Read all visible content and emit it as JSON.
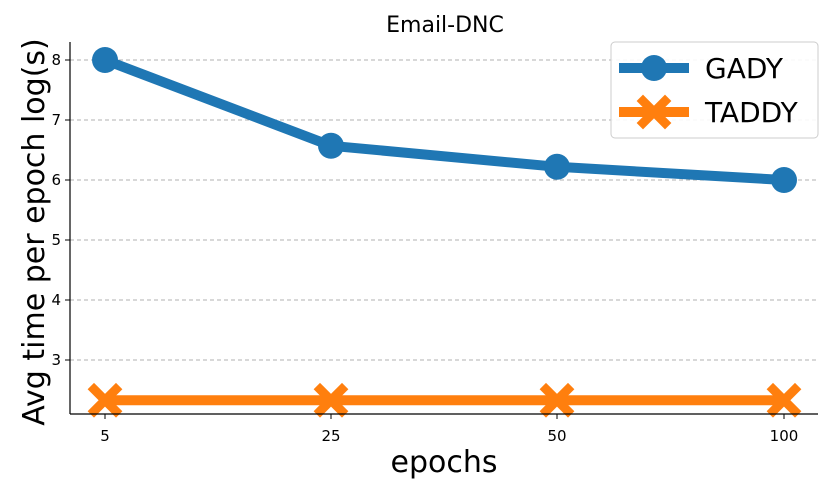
{
  "chart_data": {
    "type": "line",
    "title": "Email-DNC",
    "xlabel": "epochs",
    "ylabel": "Avg time per epoch log(s)",
    "categories": [
      "5",
      "25",
      "50",
      "100"
    ],
    "ylim": [
      2.1,
      8.3
    ],
    "yticks": [
      3,
      4,
      5,
      6,
      7,
      8
    ],
    "grid": "horizontal dashed",
    "legend_position": "top-right",
    "series": [
      {
        "name": "GADY",
        "values": [
          8.0,
          6.57,
          6.22,
          6.0
        ],
        "color": "#1f77b4",
        "marker": "circle"
      },
      {
        "name": "TADDY",
        "values": [
          2.33,
          2.33,
          2.33,
          2.33
        ],
        "color": "#ff7f0e",
        "marker": "x"
      }
    ]
  }
}
